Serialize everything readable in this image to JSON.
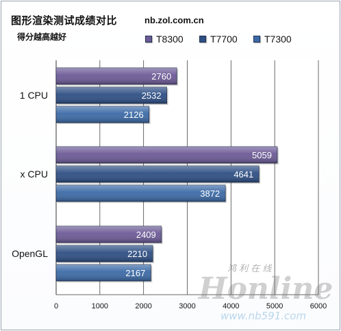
{
  "chart_data": {
    "type": "bar",
    "orientation": "horizontal",
    "title": "图形渲染测试成绩对比",
    "subtitle": "得分越高越好",
    "source": "nb.zol.com.cn",
    "categories": [
      "1 CPU",
      "x CPU",
      "OpenGL"
    ],
    "series": [
      {
        "name": "T8300",
        "values": [
          2760,
          5059,
          2409
        ],
        "color": "#6c5a96"
      },
      {
        "name": "T7700",
        "values": [
          2532,
          4641,
          2210
        ],
        "color": "#2e4f84"
      },
      {
        "name": "T7300",
        "values": [
          2126,
          3872,
          2167
        ],
        "color": "#3c6aa6"
      }
    ],
    "xlim": [
      0,
      6000
    ],
    "xticks": [
      0,
      1000,
      2000,
      3000,
      4000,
      5000,
      6000
    ],
    "grid": true,
    "legend_position": "top"
  }
}
